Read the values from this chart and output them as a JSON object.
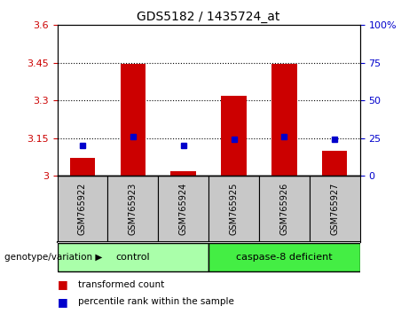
{
  "title": "GDS5182 / 1435724_at",
  "samples": [
    "GSM765922",
    "GSM765923",
    "GSM765924",
    "GSM765925",
    "GSM765926",
    "GSM765927"
  ],
  "transformed_counts": [
    3.07,
    3.445,
    3.02,
    3.32,
    3.445,
    3.1
  ],
  "percentile_ranks": [
    3.12,
    3.155,
    3.12,
    3.145,
    3.155,
    3.145
  ],
  "ylim_left": [
    3.0,
    3.6
  ],
  "ylim_right": [
    0,
    100
  ],
  "yticks_left": [
    3.0,
    3.15,
    3.3,
    3.45,
    3.6
  ],
  "ytick_labels_left": [
    "3",
    "3.15",
    "3.3",
    "3.45",
    "3.6"
  ],
  "yticks_right": [
    0,
    25,
    50,
    75,
    100
  ],
  "ytick_labels_right": [
    "0",
    "25",
    "50",
    "75",
    "100%"
  ],
  "dotted_lines": [
    3.15,
    3.3,
    3.45
  ],
  "bar_color": "#CC0000",
  "point_color": "#0000CC",
  "left_tick_color": "#CC0000",
  "right_tick_color": "#0000CC",
  "bar_width": 0.5,
  "xlim": [
    -0.5,
    5.5
  ],
  "control_indices": [
    0,
    1,
    2
  ],
  "deficient_indices": [
    3,
    4,
    5
  ],
  "control_label": "control",
  "deficient_label": "caspase-8 deficient",
  "control_color": "#AAFFAA",
  "deficient_color": "#44EE44",
  "xtick_bg": "#C8C8C8",
  "genotype_label": "genotype/variation",
  "legend_items": [
    {
      "label": "transformed count",
      "color": "#CC0000"
    },
    {
      "label": "percentile rank within the sample",
      "color": "#0000CC"
    }
  ]
}
